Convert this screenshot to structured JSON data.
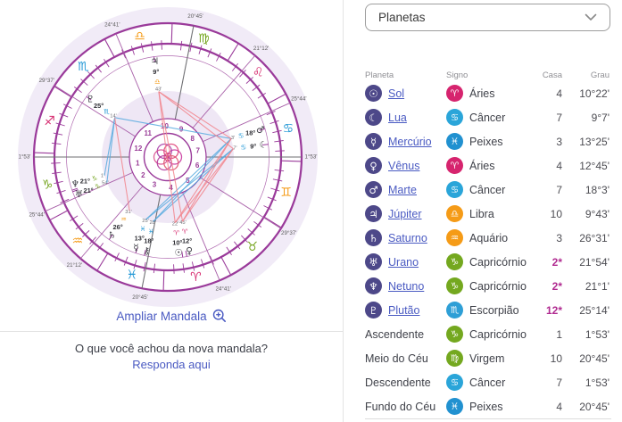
{
  "dropdown": {
    "label": "Planetas"
  },
  "table": {
    "headers": [
      "Planeta",
      "Signo",
      "Casa",
      "Grau"
    ],
    "rows": [
      {
        "planet": "Sol",
        "planet_glyph": "☉",
        "is_link": true,
        "sign": "Áries",
        "sign_glyph": "♈",
        "sign_color": "#d6246e",
        "casa": "4",
        "grau": "10°22'"
      },
      {
        "planet": "Lua",
        "planet_glyph": "☾",
        "is_link": true,
        "sign": "Câncer",
        "sign_glyph": "♋",
        "sign_color": "#2aa5d9",
        "casa": "7",
        "grau": "9°7'"
      },
      {
        "planet": "Mercúrio",
        "planet_glyph": "☿",
        "is_link": true,
        "sign": "Peixes",
        "sign_glyph": "♓",
        "sign_color": "#2191d0",
        "casa": "3",
        "grau": "13°25'"
      },
      {
        "planet": "Vênus",
        "planet_glyph": "♀",
        "is_link": true,
        "sign": "Áries",
        "sign_glyph": "♈",
        "sign_color": "#d6246e",
        "casa": "4",
        "grau": "12°45'"
      },
      {
        "planet": "Marte",
        "planet_glyph": "♂",
        "is_link": true,
        "sign": "Câncer",
        "sign_glyph": "♋",
        "sign_color": "#2aa5d9",
        "casa": "7",
        "grau": "18°3'"
      },
      {
        "planet": "Júpiter",
        "planet_glyph": "♃",
        "is_link": true,
        "sign": "Libra",
        "sign_glyph": "♎",
        "sign_color": "#f59b17",
        "casa": "10",
        "grau": "9°43'"
      },
      {
        "planet": "Saturno",
        "planet_glyph": "♄",
        "is_link": true,
        "sign": "Aquário",
        "sign_glyph": "♒",
        "sign_color": "#f59b17",
        "casa": "3",
        "grau": "26°31'"
      },
      {
        "planet": "Urano",
        "planet_glyph": "♅",
        "is_link": true,
        "sign": "Capricórnio",
        "sign_glyph": "♑",
        "sign_color": "#74a81f",
        "casa": "2*",
        "grau": "21°54'"
      },
      {
        "planet": "Netuno",
        "planet_glyph": "♆",
        "is_link": true,
        "sign": "Capricórnio",
        "sign_glyph": "♑",
        "sign_color": "#74a81f",
        "casa": "2*",
        "grau": "21°1'"
      },
      {
        "planet": "Plutão",
        "planet_glyph": "♇",
        "is_link": true,
        "sign": "Escorpião",
        "sign_glyph": "♏",
        "sign_color": "#2e9fd6",
        "casa": "12*",
        "grau": "25°14'"
      },
      {
        "planet": "Ascendente",
        "planet_glyph": null,
        "is_link": false,
        "sign": "Capricórnio",
        "sign_glyph": "♑",
        "sign_color": "#74a81f",
        "casa": "1",
        "grau": "1°53'"
      },
      {
        "planet": "Meio do Céu",
        "planet_glyph": null,
        "is_link": false,
        "sign": "Virgem",
        "sign_glyph": "♍",
        "sign_color": "#74a81f",
        "casa": "10",
        "grau": "20°45'"
      },
      {
        "planet": "Descendente",
        "planet_glyph": null,
        "is_link": false,
        "sign": "Câncer",
        "sign_glyph": "♋",
        "sign_color": "#2aa5d9",
        "casa": "7",
        "grau": "1°53'"
      },
      {
        "planet": "Fundo do Céu",
        "planet_glyph": null,
        "is_link": false,
        "sign": "Peixes",
        "sign_glyph": "♓",
        "sign_color": "#2191d0",
        "casa": "4",
        "grau": "20°45'"
      }
    ]
  },
  "footer": {
    "ampliar": "Ampliar Mandala",
    "question": "O que você achou da nova mandala?",
    "answer_link": "Responda aqui"
  },
  "chart_data": {
    "type": "astrology-wheel",
    "signs": [
      {
        "name": "Áries",
        "glyph": "♈",
        "color": "#d62a6e"
      },
      {
        "name": "Touro",
        "glyph": "♉",
        "color": "#76a520"
      },
      {
        "name": "Gêmeos",
        "glyph": "♊",
        "color": "#f59b17"
      },
      {
        "name": "Câncer",
        "glyph": "♋",
        "color": "#2398d6"
      },
      {
        "name": "Leão",
        "glyph": "♌",
        "color": "#d62a6e"
      },
      {
        "name": "Virgem",
        "glyph": "♍",
        "color": "#76a520"
      },
      {
        "name": "Libra",
        "glyph": "♎",
        "color": "#f59b17"
      },
      {
        "name": "Escorpião",
        "glyph": "♏",
        "color": "#2398d6"
      },
      {
        "name": "Sagitário",
        "glyph": "♐",
        "color": "#d62a6e"
      },
      {
        "name": "Capricórnio",
        "glyph": "♑",
        "color": "#76a520"
      },
      {
        "name": "Aquário",
        "glyph": "♒",
        "color": "#f59b17"
      },
      {
        "name": "Peixes",
        "glyph": "♓",
        "color": "#2398d6"
      }
    ],
    "planets": [
      {
        "name": "Sol",
        "glyph": "☉",
        "sign": "Áries",
        "deg": 10,
        "min": 22
      },
      {
        "name": "Lua",
        "glyph": "☾",
        "sign": "Câncer",
        "deg": 9,
        "min": 7
      },
      {
        "name": "Mercúrio",
        "glyph": "☿",
        "sign": "Peixes",
        "deg": 13,
        "min": 25
      },
      {
        "name": "Vênus",
        "glyph": "♀",
        "sign": "Áries",
        "deg": 12,
        "min": 45
      },
      {
        "name": "Marte",
        "glyph": "♂",
        "sign": "Câncer",
        "deg": 18,
        "min": 3
      },
      {
        "name": "Júpiter",
        "glyph": "♃",
        "sign": "Libra",
        "deg": 9,
        "min": 43
      },
      {
        "name": "Saturno",
        "glyph": "♄",
        "sign": "Aquário",
        "deg": 26,
        "min": 31
      },
      {
        "name": "Urano",
        "glyph": "♅",
        "sign": "Capricórnio",
        "deg": 21,
        "min": 54
      },
      {
        "name": "Netuno",
        "glyph": "♆",
        "sign": "Capricórnio",
        "deg": 21,
        "min": 1
      },
      {
        "name": "Plutão",
        "glyph": "♇",
        "sign": "Escorpião",
        "deg": 25,
        "min": 14
      },
      {
        "name": "Quíron",
        "glyph": "⚷",
        "sign": "Peixes",
        "deg": 18,
        "min": 28
      }
    ],
    "cusps": [
      {
        "house": 1,
        "sign": "Capricórnio",
        "deg": 1,
        "min": 53
      },
      {
        "house": 2,
        "sign": "Capricórnio",
        "deg": 25,
        "min": 44
      },
      {
        "house": 3,
        "sign": "Aquário",
        "deg": 21,
        "min": 12
      },
      {
        "house": 4,
        "sign": "Peixes",
        "deg": 20,
        "min": 45
      },
      {
        "house": 5,
        "sign": "Áries",
        "deg": 24,
        "min": 41
      },
      {
        "house": 6,
        "sign": "Touro",
        "deg": 29,
        "min": 37
      },
      {
        "house": 7,
        "sign": "Câncer",
        "deg": 1,
        "min": 53
      },
      {
        "house": 8,
        "sign": "Câncer",
        "deg": 25,
        "min": 44
      },
      {
        "house": 9,
        "sign": "Leão",
        "deg": 21,
        "min": 12
      },
      {
        "house": 10,
        "sign": "Virgem",
        "deg": 20,
        "min": 45
      },
      {
        "house": 11,
        "sign": "Libra",
        "deg": 24,
        "min": 41
      },
      {
        "house": 12,
        "sign": "Escorpião",
        "deg": 29,
        "min": 37
      }
    ],
    "aspects": [
      {
        "a": "Mercúrio",
        "b": "Lua",
        "kind": "blue"
      },
      {
        "a": "Mercúrio",
        "b": "Marte",
        "kind": "blue"
      },
      {
        "a": "Quíron",
        "b": "Marte",
        "kind": "blue"
      },
      {
        "a": "Quíron",
        "b": "Lua",
        "kind": "blue"
      },
      {
        "a": "Urano",
        "b": "Plutão",
        "kind": "blue"
      },
      {
        "a": "Netuno",
        "b": "Plutão",
        "kind": "blue"
      },
      {
        "a": "Marte",
        "b": "Plutão",
        "kind": "blue"
      },
      {
        "a": "Sol",
        "b": "Lua",
        "kind": "red"
      },
      {
        "a": "Vênus",
        "b": "Lua",
        "kind": "red"
      },
      {
        "a": "Sol",
        "b": "Marte",
        "kind": "red"
      },
      {
        "a": "Vênus",
        "b": "Marte",
        "kind": "red"
      },
      {
        "a": "Lua",
        "b": "Júpiter",
        "kind": "red"
      },
      {
        "a": "Marte",
        "b": "Júpiter",
        "kind": "red"
      },
      {
        "a": "Sol",
        "b": "Júpiter",
        "kind": "red"
      },
      {
        "a": "Vênus",
        "b": "Júpiter",
        "kind": "red"
      },
      {
        "a": "Saturno",
        "b": "Plutão",
        "kind": "red"
      }
    ],
    "colors": {
      "ring_purple": "#9a3a9a",
      "cusp_purple": "#a85fa8",
      "axis_gray": "#6e6e72",
      "lavender": "#f1ebf7",
      "inner_lavender": "#efe7f5",
      "aspect_blue": "#57abdf",
      "aspect_red": "#f2858d",
      "house_number": "#993c97",
      "logo_ring": [
        "#c9399e",
        "#e0457b",
        "#a83ea8",
        "#d94f8e",
        "#b23a9b",
        "#e05a71"
      ]
    }
  }
}
